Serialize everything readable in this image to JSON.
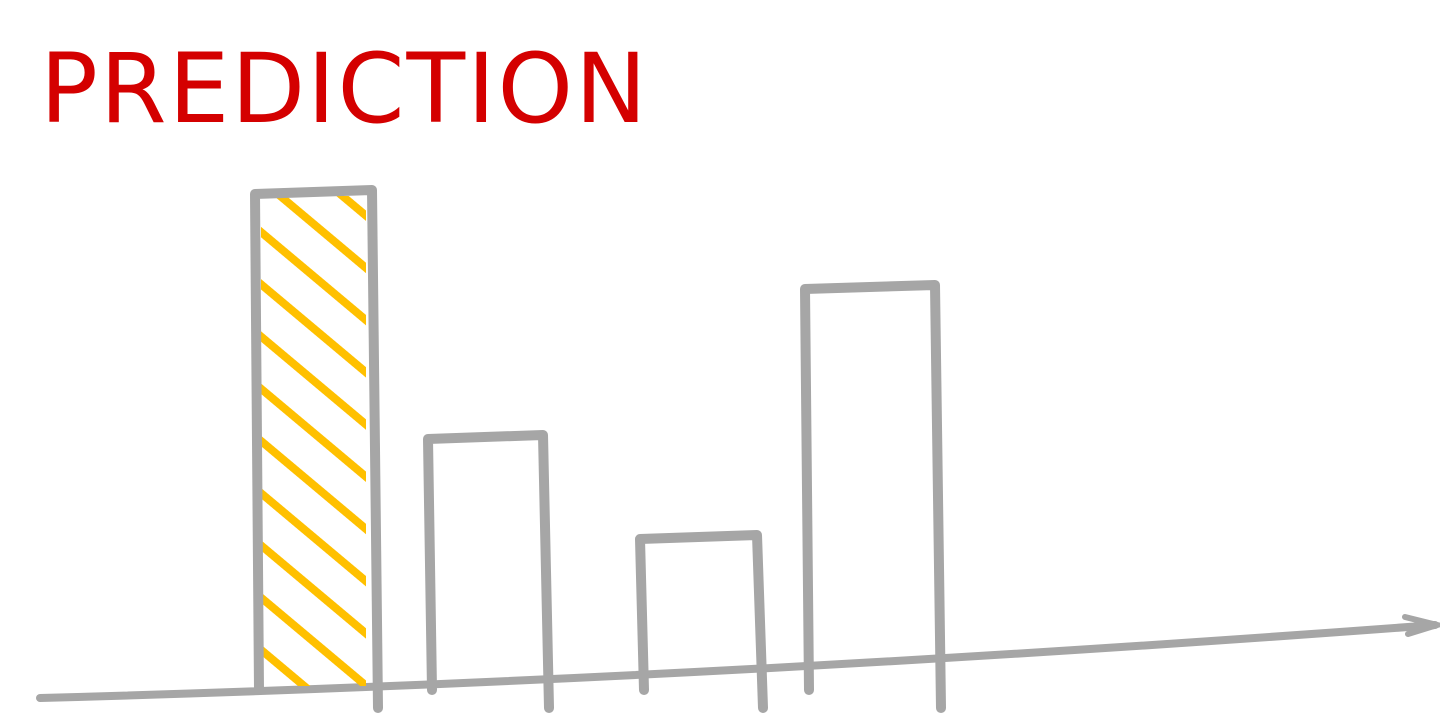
{
  "chart_data": {
    "type": "bar",
    "title": "PREDICTION",
    "values": [
      100,
      51,
      31,
      81
    ],
    "color": "#a6a6a6",
    "highlight_color": "#ffc000",
    "highlight": 0,
    "ylim": [
      0,
      100
    ]
  }
}
